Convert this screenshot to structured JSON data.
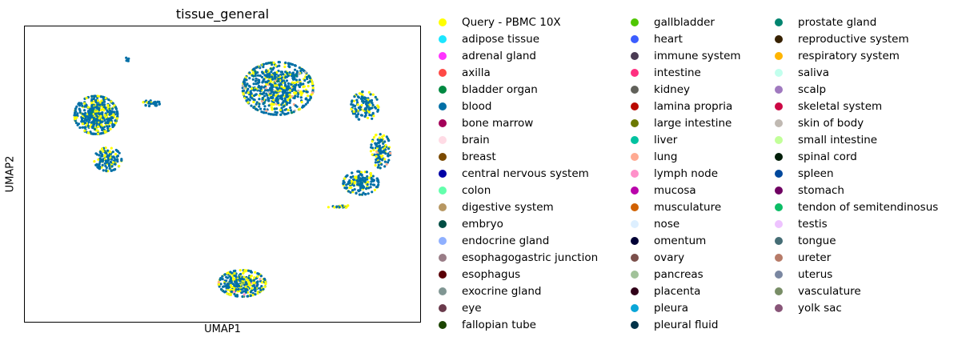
{
  "chart_data": {
    "type": "scatter",
    "title": "tissue_general",
    "xlabel": "UMAP1",
    "ylabel": "UMAP2",
    "grid": false,
    "legend_placement": "right, outside plot, 3 columns",
    "categories": [
      {
        "name": "Query - PBMC 10X",
        "color": "#ffff00"
      },
      {
        "name": "adipose tissue",
        "color": "#1ce6ff"
      },
      {
        "name": "adrenal gland",
        "color": "#ff34ff"
      },
      {
        "name": "axilla",
        "color": "#ff4a46"
      },
      {
        "name": "bladder organ",
        "color": "#008941"
      },
      {
        "name": "blood",
        "color": "#006fa6"
      },
      {
        "name": "bone marrow",
        "color": "#a30059"
      },
      {
        "name": "brain",
        "color": "#ffdbe5"
      },
      {
        "name": "breast",
        "color": "#7a4900"
      },
      {
        "name": "central nervous system",
        "color": "#0000a6"
      },
      {
        "name": "colon",
        "color": "#63ffac"
      },
      {
        "name": "digestive system",
        "color": "#b79762"
      },
      {
        "name": "embryo",
        "color": "#004d43"
      },
      {
        "name": "endocrine gland",
        "color": "#8fb0ff"
      },
      {
        "name": "esophagogastric junction",
        "color": "#997d87"
      },
      {
        "name": "esophagus",
        "color": "#5a0007"
      },
      {
        "name": "exocrine gland",
        "color": "#809693"
      },
      {
        "name": "eye",
        "color": "#6a3a4c"
      },
      {
        "name": "fallopian tube",
        "color": "#1b4400"
      },
      {
        "name": "gallbladder",
        "color": "#4fc601"
      },
      {
        "name": "heart",
        "color": "#3b5dff"
      },
      {
        "name": "immune system",
        "color": "#4a3b53"
      },
      {
        "name": "intestine",
        "color": "#ff2f80"
      },
      {
        "name": "kidney",
        "color": "#61615a"
      },
      {
        "name": "lamina propria",
        "color": "#ba0900"
      },
      {
        "name": "large intestine",
        "color": "#6b7900"
      },
      {
        "name": "liver",
        "color": "#00c2a0"
      },
      {
        "name": "lung",
        "color": "#ffaa92"
      },
      {
        "name": "lymph node",
        "color": "#ff90c9"
      },
      {
        "name": "mucosa",
        "color": "#b903aa"
      },
      {
        "name": "musculature",
        "color": "#d16100"
      },
      {
        "name": "nose",
        "color": "#ddefff"
      },
      {
        "name": "omentum",
        "color": "#000035"
      },
      {
        "name": "ovary",
        "color": "#7b4f4b"
      },
      {
        "name": "pancreas",
        "color": "#a1c299"
      },
      {
        "name": "placenta",
        "color": "#300018"
      },
      {
        "name": "pleura",
        "color": "#0aa6d8"
      },
      {
        "name": "pleural fluid",
        "color": "#013349"
      },
      {
        "name": "prostate gland",
        "color": "#00846f"
      },
      {
        "name": "reproductive system",
        "color": "#372101"
      },
      {
        "name": "respiratory system",
        "color": "#ffb500"
      },
      {
        "name": "saliva",
        "color": "#c2ffed"
      },
      {
        "name": "scalp",
        "color": "#a079bf"
      },
      {
        "name": "skeletal system",
        "color": "#cc0744"
      },
      {
        "name": "skin of body",
        "color": "#c0b9b2"
      },
      {
        "name": "small intestine",
        "color": "#c2ff99"
      },
      {
        "name": "spinal cord",
        "color": "#001e09"
      },
      {
        "name": "spleen",
        "color": "#00489c"
      },
      {
        "name": "stomach",
        "color": "#6f0062"
      },
      {
        "name": "tendon of semitendinosus",
        "color": "#0cbd66"
      },
      {
        "name": "testis",
        "color": "#eec3ff"
      },
      {
        "name": "tongue",
        "color": "#456d75"
      },
      {
        "name": "ureter",
        "color": "#b77b68"
      },
      {
        "name": "uterus",
        "color": "#7a87a1"
      },
      {
        "name": "vasculature",
        "color": "#788d66"
      },
      {
        "name": "yolk sac",
        "color": "#885578"
      }
    ],
    "clusters": [
      {
        "cx": 0.18,
        "cy": 0.7,
        "rx": 0.055,
        "ry": 0.065,
        "n": 480,
        "mix": {
          "blood": 0.72,
          "Query - PBMC 10X": 0.26,
          "prostate gland": 0.02
        }
      },
      {
        "cx": 0.21,
        "cy": 0.55,
        "rx": 0.035,
        "ry": 0.04,
        "n": 140,
        "mix": {
          "blood": 0.7,
          "Query - PBMC 10X": 0.3
        }
      },
      {
        "cx": 0.32,
        "cy": 0.74,
        "rx": 0.022,
        "ry": 0.01,
        "n": 30,
        "mix": {
          "blood": 0.9,
          "Query - PBMC 10X": 0.1
        }
      },
      {
        "cx": 0.26,
        "cy": 0.89,
        "rx": 0.004,
        "ry": 0.008,
        "n": 8,
        "mix": {
          "blood": 1.0
        }
      },
      {
        "cx": 0.64,
        "cy": 0.79,
        "rx": 0.09,
        "ry": 0.09,
        "n": 700,
        "mix": {
          "blood": 0.7,
          "Query - PBMC 10X": 0.22,
          "lung": 0.03,
          "prostate gland": 0.03,
          "skin of body": 0.02
        }
      },
      {
        "cx": 0.86,
        "cy": 0.73,
        "rx": 0.035,
        "ry": 0.05,
        "n": 130,
        "mix": {
          "blood": 0.75,
          "Query - PBMC 10X": 0.25
        }
      },
      {
        "cx": 0.9,
        "cy": 0.58,
        "rx": 0.025,
        "ry": 0.06,
        "n": 120,
        "mix": {
          "blood": 0.72,
          "Query - PBMC 10X": 0.26,
          "lung": 0.02
        }
      },
      {
        "cx": 0.85,
        "cy": 0.47,
        "rx": 0.045,
        "ry": 0.04,
        "n": 160,
        "mix": {
          "blood": 0.76,
          "Query - PBMC 10X": 0.24
        }
      },
      {
        "cx": 0.8,
        "cy": 0.39,
        "rx": 0.035,
        "ry": 0.005,
        "n": 22,
        "mix": {
          "blood": 0.5,
          "Query - PBMC 10X": 0.4,
          "small intestine": 0.1
        }
      },
      {
        "cx": 0.55,
        "cy": 0.13,
        "rx": 0.06,
        "ry": 0.045,
        "n": 320,
        "mix": {
          "blood": 0.6,
          "Query - PBMC 10X": 0.36,
          "lymph node": 0.02,
          "lung": 0.02
        }
      }
    ]
  }
}
